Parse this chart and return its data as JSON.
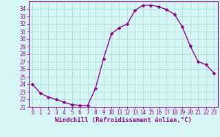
{
  "x": [
    0,
    1,
    2,
    3,
    4,
    5,
    6,
    7,
    8,
    9,
    10,
    11,
    12,
    13,
    14,
    15,
    16,
    17,
    18,
    19,
    20,
    21,
    22,
    23
  ],
  "y": [
    24.0,
    22.8,
    22.3,
    22.0,
    21.6,
    21.3,
    21.2,
    21.2,
    23.5,
    27.4,
    30.7,
    31.5,
    32.0,
    33.8,
    34.5,
    34.5,
    34.3,
    33.9,
    33.3,
    31.6,
    29.1,
    27.0,
    26.6,
    25.5
  ],
  "line_color": "#8B008B",
  "marker": "D",
  "marker_size": 2.5,
  "bg_color": "#d6f5f5",
  "grid_color": "#b0dede",
  "xlabel": "Windchill (Refroidissement éolien,°C)",
  "xlim": [
    -0.5,
    23.5
  ],
  "ylim": [
    21,
    35
  ],
  "yticks": [
    21,
    22,
    23,
    24,
    25,
    26,
    27,
    28,
    29,
    30,
    31,
    32,
    33,
    34
  ],
  "xticks": [
    0,
    1,
    2,
    3,
    4,
    5,
    6,
    7,
    8,
    9,
    10,
    11,
    12,
    13,
    14,
    15,
    16,
    17,
    18,
    19,
    20,
    21,
    22,
    23
  ],
  "xlabel_fontsize": 6.5,
  "tick_fontsize": 5.5,
  "label_color": "#8B008B",
  "axis_line_color": "#8B008B",
  "linewidth": 1.0
}
